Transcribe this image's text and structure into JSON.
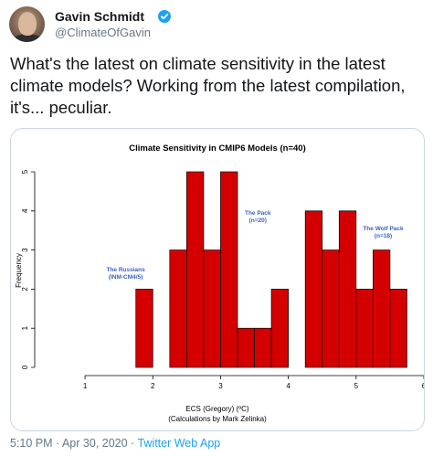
{
  "tweet": {
    "author_name": "Gavin Schmidt",
    "author_handle": "@ClimateOfGavin",
    "text": "What's the latest on climate sensitivity in the latest climate models? Working from the latest compilation, it's... peculiar.",
    "timestamp": "5:10 PM · Apr 30, 2020 · ",
    "source": "Twitter Web App"
  },
  "colors": {
    "bar_fill": "#d40000",
    "annotation": "#3a5fc4",
    "link": "#1da1f2",
    "muted": "#657786"
  },
  "chart_data": {
    "type": "bar",
    "title": "Climate Sensitivity in CMIP6 Models (n=40)",
    "xlabel": "ECS (Gregory) (ºC)",
    "xlabel2": "(Calculations by Mark Zelinka)",
    "ylabel": "Frequency",
    "xlim": [
      0.5,
      6
    ],
    "ylim": [
      0,
      5
    ],
    "x_ticks": [
      1,
      2,
      3,
      4,
      5,
      6
    ],
    "y_ticks": [
      0,
      1,
      2,
      3,
      4,
      5
    ],
    "bin_width": 0.25,
    "bins": [
      {
        "start": 1.75,
        "value": 2
      },
      {
        "start": 2.25,
        "value": 3
      },
      {
        "start": 2.5,
        "value": 5
      },
      {
        "start": 2.75,
        "value": 3
      },
      {
        "start": 3.0,
        "value": 5
      },
      {
        "start": 3.25,
        "value": 1
      },
      {
        "start": 3.5,
        "value": 1
      },
      {
        "start": 3.75,
        "value": 2
      },
      {
        "start": 4.25,
        "value": 4
      },
      {
        "start": 4.5,
        "value": 3
      },
      {
        "start": 4.75,
        "value": 4
      },
      {
        "start": 5.0,
        "value": 2
      },
      {
        "start": 5.25,
        "value": 3
      },
      {
        "start": 5.5,
        "value": 2
      }
    ],
    "annotations": [
      {
        "lines": [
          "The Russians",
          "(INM-CM4/5)"
        ],
        "x": 1.6,
        "y": 2.45
      },
      {
        "lines": [
          "The Pack",
          "(n=20)"
        ],
        "x": 3.55,
        "y": 3.9
      },
      {
        "lines": [
          "The Wolf Pack",
          "(n=18)"
        ],
        "x": 5.4,
        "y": 3.5
      }
    ]
  }
}
